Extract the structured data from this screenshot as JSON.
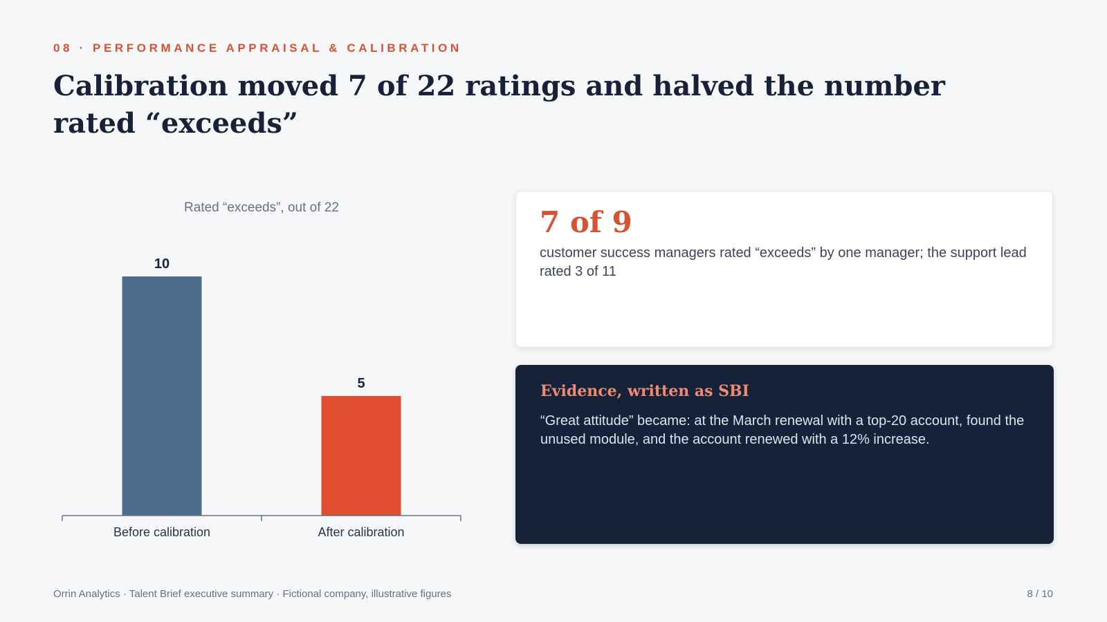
{
  "slide": {
    "eyebrow": "08 · PERFORMANCE APPRAISAL & CALIBRATION",
    "headline": "Calibration moved 7 of 22 ratings and halved the number rated “exceeds”"
  },
  "chart_data": {
    "type": "bar",
    "title": "Rated “exceeds”, out of 22",
    "categories": [
      "Before calibration",
      "After calibration"
    ],
    "values": [
      10,
      5
    ],
    "value_labels": [
      "10",
      "5"
    ],
    "ylim": [
      0,
      10
    ],
    "grid": false,
    "legend": "none",
    "colors": [
      "#4e6c8b",
      "#e04e30"
    ]
  },
  "stat_card": {
    "value": "7 of 9",
    "description": "customer success managers rated “exceeds” by one manager; the support lead rated 3 of 11"
  },
  "evidence_card": {
    "title": "Evidence, written as SBI",
    "body": "“Great attitude” became: at the March renewal with a top-20 account, found the unused module, and the account renewed with a 12% increase."
  },
  "footer": {
    "source": "Orrin Analytics · Talent Brief executive summary · Fictional company, illustrative figures",
    "page": "8 / 10"
  },
  "colors": {
    "accent": "#d65233",
    "navy": "#16213a",
    "bar_before": "#4e6c8b",
    "bar_after": "#e04e30"
  }
}
